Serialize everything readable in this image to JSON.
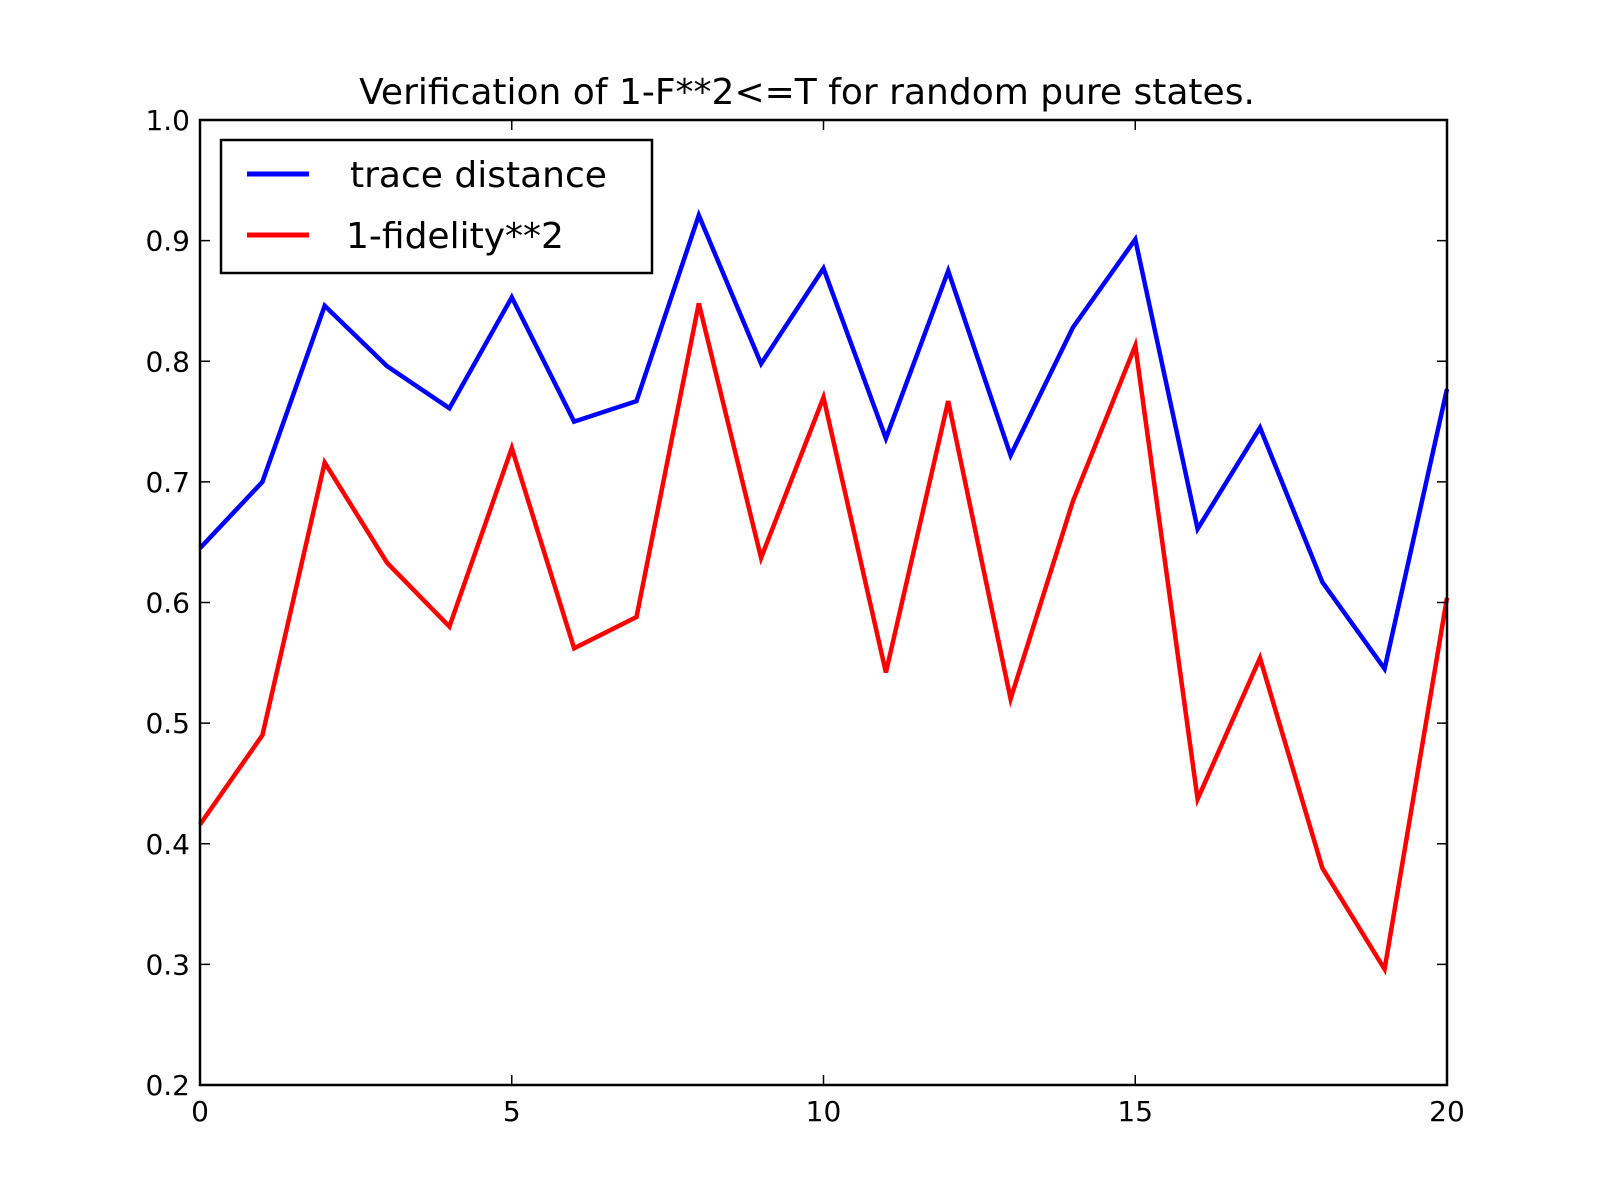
{
  "chart_data": {
    "type": "line",
    "title": "Verification of 1-F**2<=T for random pure states.",
    "xlabel": "",
    "ylabel": "",
    "xlim": [
      0,
      20
    ],
    "ylim": [
      0.2,
      1.0
    ],
    "grid": false,
    "legend_position": "top-left",
    "x_ticks": [
      "0",
      "5",
      "10",
      "15",
      "20"
    ],
    "y_ticks": [
      "0.2",
      "0.3",
      "0.4",
      "0.5",
      "0.6",
      "0.7",
      "0.8",
      "0.9",
      "1.0"
    ],
    "x": [
      0,
      1,
      2,
      3,
      4,
      5,
      6,
      7,
      8,
      9,
      10,
      11,
      12,
      13,
      14,
      15,
      16,
      17,
      18,
      19,
      20
    ],
    "series": [
      {
        "name": "trace distance",
        "color": "#0000ff",
        "values": [
          0.645,
          0.7,
          0.846,
          0.796,
          0.761,
          0.853,
          0.75,
          0.767,
          0.921,
          0.798,
          0.877,
          0.736,
          0.875,
          0.722,
          0.828,
          0.901,
          0.661,
          0.745,
          0.617,
          0.545,
          0.777
        ]
      },
      {
        "name": "1-fidelity**2",
        "color": "#ff0000",
        "values": [
          0.416,
          0.49,
          0.716,
          0.633,
          0.58,
          0.728,
          0.562,
          0.588,
          0.848,
          0.637,
          0.77,
          0.542,
          0.767,
          0.52,
          0.684,
          0.813,
          0.437,
          0.554,
          0.38,
          0.296,
          0.604
        ]
      }
    ]
  }
}
